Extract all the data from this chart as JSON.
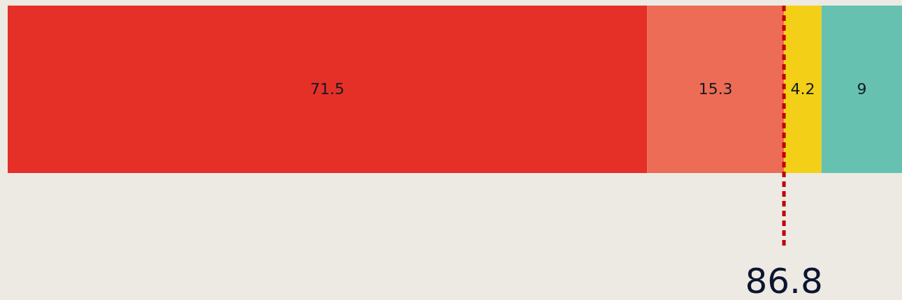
{
  "chart_data": {
    "type": "bar",
    "orientation": "horizontal",
    "stacked": true,
    "categories": [
      null
    ],
    "data_labels": true,
    "series": [
      {
        "color": "#e53027",
        "values": [
          71.5
        ]
      },
      {
        "color": "#ec6c55",
        "values": [
          15.3
        ]
      },
      {
        "color": "#f3d017",
        "values": [
          4.2
        ]
      },
      {
        "color": "#66c1b0",
        "values": [
          9
        ]
      }
    ],
    "ref_lines": [
      {
        "axis": "x",
        "value": 86.8,
        "label": "86.8",
        "color": "#c00000",
        "line_style": "dashed"
      }
    ]
  }
}
